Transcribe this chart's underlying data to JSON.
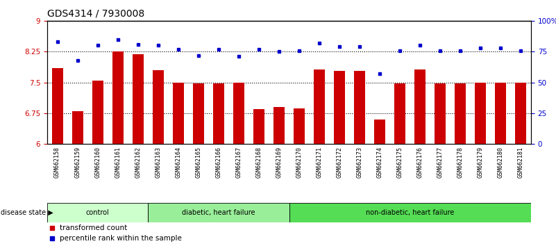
{
  "title": "GDS4314 / 7930008",
  "samples": [
    "GSM662158",
    "GSM662159",
    "GSM662160",
    "GSM662161",
    "GSM662162",
    "GSM662163",
    "GSM662164",
    "GSM662165",
    "GSM662166",
    "GSM662167",
    "GSM662168",
    "GSM662169",
    "GSM662170",
    "GSM662171",
    "GSM662172",
    "GSM662173",
    "GSM662174",
    "GSM662175",
    "GSM662176",
    "GSM662177",
    "GSM662178",
    "GSM662179",
    "GSM662180",
    "GSM662181"
  ],
  "bar_values": [
    7.85,
    6.8,
    7.55,
    8.25,
    8.18,
    7.8,
    7.5,
    7.47,
    7.47,
    7.5,
    6.85,
    6.9,
    6.87,
    7.82,
    7.78,
    7.78,
    6.6,
    7.48,
    7.82,
    7.48,
    7.48,
    7.5,
    7.5,
    7.5
  ],
  "dot_values": [
    83,
    68,
    80,
    85,
    81,
    80,
    77,
    72,
    77,
    71,
    77,
    75,
    76,
    82,
    79,
    79,
    57,
    76,
    80,
    76,
    76,
    78,
    78,
    76
  ],
  "groups": [
    {
      "label": "control",
      "start": 0,
      "end": 5,
      "color": "#ccffcc"
    },
    {
      "label": "diabetic, heart failure",
      "start": 5,
      "end": 12,
      "color": "#99ee99"
    },
    {
      "label": "non-diabetic, heart failure",
      "start": 12,
      "end": 24,
      "color": "#55dd55"
    }
  ],
  "bar_color": "#cc0000",
  "dot_color": "#0000cc",
  "ylim_left": [
    6.0,
    9.0
  ],
  "ylim_right": [
    0,
    100
  ],
  "yticks_left": [
    6.0,
    6.75,
    7.5,
    8.25,
    9.0
  ],
  "ytick_labels_left": [
    "6",
    "6.75",
    "7.5",
    "8.25",
    "9"
  ],
  "yticks_right": [
    0,
    25,
    50,
    75,
    100
  ],
  "ytick_labels_right": [
    "0",
    "25",
    "50",
    "75",
    "100%"
  ],
  "hlines": [
    6.75,
    7.5,
    8.25
  ],
  "bg_color": "#dddddd",
  "title_fontsize": 10,
  "tick_fontsize": 7.5,
  "xtick_fontsize": 6.0
}
